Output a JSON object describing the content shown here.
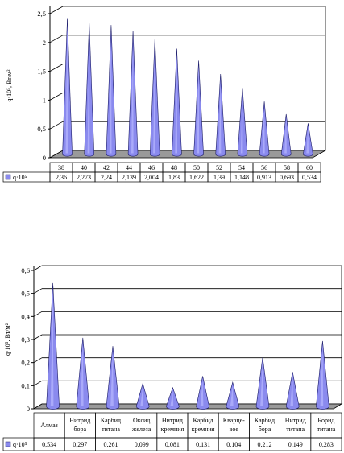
{
  "chart_data": [
    {
      "type": "bar",
      "categories": [
        "38",
        "40",
        "42",
        "44",
        "46",
        "48",
        "50",
        "52",
        "54",
        "56",
        "58",
        "60"
      ],
      "series": [
        {
          "name": "q·10⁵",
          "values": [
            2.36,
            2.273,
            2.24,
            2.139,
            2.004,
            1.83,
            1.622,
            1.39,
            1.148,
            0.913,
            0.693,
            0.534
          ]
        }
      ],
      "value_labels": [
        "2,36",
        "2,273",
        "2,24",
        "2,139",
        "2,004",
        "1,83",
        "1,622",
        "1,39",
        "1,148",
        "0,913",
        "0,693",
        "0,534"
      ],
      "ylabel": "q·10⁵, Вт/м²",
      "ylim": [
        0,
        2.5
      ],
      "yticks": [
        "0",
        "0,5",
        "1",
        "1,5",
        "2",
        "2,5"
      ],
      "ytick_values": [
        0,
        0.5,
        1,
        1.5,
        2,
        2.5
      ],
      "grid": true,
      "legend_in_table": true,
      "bar_shape": "cone",
      "colors": {
        "fill": "#8a8aee",
        "stroke": "#1a1a66",
        "floor": "#9a9a9a"
      }
    },
    {
      "type": "bar",
      "categories": [
        "Алмаз",
        "Нитрид бора",
        "Карбид титана",
        "Оксид железа",
        "Нитрид кремния",
        "Карбид кремния",
        "Кварце-вое",
        "Карбид бора",
        "Нитрид титана",
        "Борид титана"
      ],
      "category_lines": [
        [
          "Алмаз"
        ],
        [
          "Нитрид",
          "бора"
        ],
        [
          "Карбид",
          "титана"
        ],
        [
          "Оксид",
          "железа"
        ],
        [
          "Нитрид",
          "кремния"
        ],
        [
          "Карбид",
          "кремния"
        ],
        [
          "Кварце-",
          "вое"
        ],
        [
          "Карбид",
          "бора"
        ],
        [
          "Нитрид",
          "титана"
        ],
        [
          "Борид",
          "титана"
        ]
      ],
      "series": [
        {
          "name": "q·10⁵",
          "values": [
            0.534,
            0.297,
            0.261,
            0.099,
            0.081,
            0.131,
            0.104,
            0.212,
            0.149,
            0.283
          ]
        }
      ],
      "value_labels": [
        "0,534",
        "0,297",
        "0,261",
        "0,099",
        "0,081",
        "0,131",
        "0,104",
        "0,212",
        "0,149",
        "0,283"
      ],
      "ylabel": "q·10⁵, Вт/м²",
      "ylim": [
        0,
        0.6
      ],
      "yticks": [
        "0",
        "0,1",
        "0,2",
        "0,3",
        "0,4",
        "0,5",
        "0,6"
      ],
      "ytick_values": [
        0,
        0.1,
        0.2,
        0.3,
        0.4,
        0.5,
        0.6
      ],
      "grid": true,
      "legend_in_table": true,
      "bar_shape": "cone",
      "colors": {
        "fill": "#8a8aee",
        "stroke": "#1a1a66",
        "floor": "#9a9a9a"
      }
    }
  ]
}
